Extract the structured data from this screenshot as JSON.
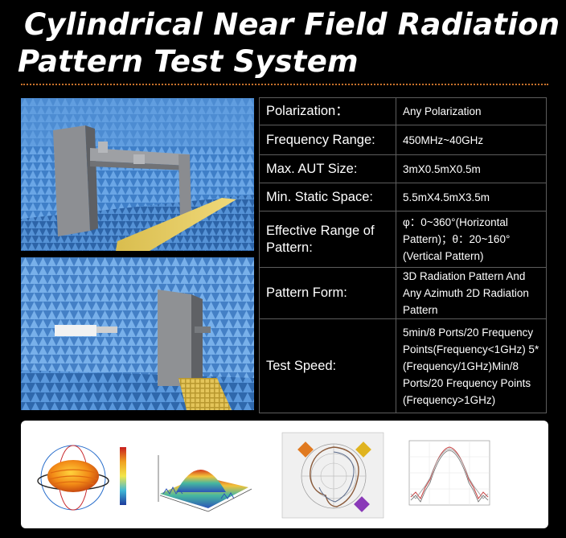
{
  "title": {
    "line1": "Cylindrical Near Field Radiation",
    "line2": "Pattern Test System"
  },
  "specs": [
    {
      "label": "Polarization：",
      "value": "Any Polarization"
    },
    {
      "label": "Frequency Range:",
      "value": "450MHz~40GHz"
    },
    {
      "label": "Max. AUT Size:",
      "value": "3mX0.5mX0.5m"
    },
    {
      "label": "Min. Static Space:",
      "value": "5.5mX4.5mX3.5m"
    },
    {
      "label": "Effective Range of Pattern:",
      "value": "φ：0~360°(Horizontal Pattern)；θ：20~160°(Vertical Pattern)"
    },
    {
      "label": "Pattern Form:",
      "value": "3D Radiation Pattern And Any Azimuth 2D Radiation Pattern"
    },
    {
      "label": "Test Speed:",
      "value": "5min/8 Ports/20 Frequency Points(Frequency<1GHz) 5*(Frequency/1GHz)Min/8 Ports/20 Frequency Points (Frequency>1GHz)"
    }
  ],
  "colors": {
    "background": "#000000",
    "divider": "#c9722c",
    "table_border": "#5d5d5d",
    "absorber_blue": "#4d8fd6",
    "walkway_yellow": "#e0c35a"
  },
  "images": [
    {
      "name": "anechoic-chamber-photo-1",
      "depicts": "cylindrical scanner frame in blue-absorber chamber"
    },
    {
      "name": "anechoic-chamber-photo-2",
      "depicts": "antenna under test and probe tower"
    }
  ],
  "thumbnails": [
    {
      "name": "3d-radiation-pattern-thumbnail"
    },
    {
      "name": "near-field-surface-plot-thumbnail"
    },
    {
      "name": "polar-radiation-pattern-thumbnail"
    },
    {
      "name": "cartesian-pattern-plot-thumbnail"
    }
  ]
}
